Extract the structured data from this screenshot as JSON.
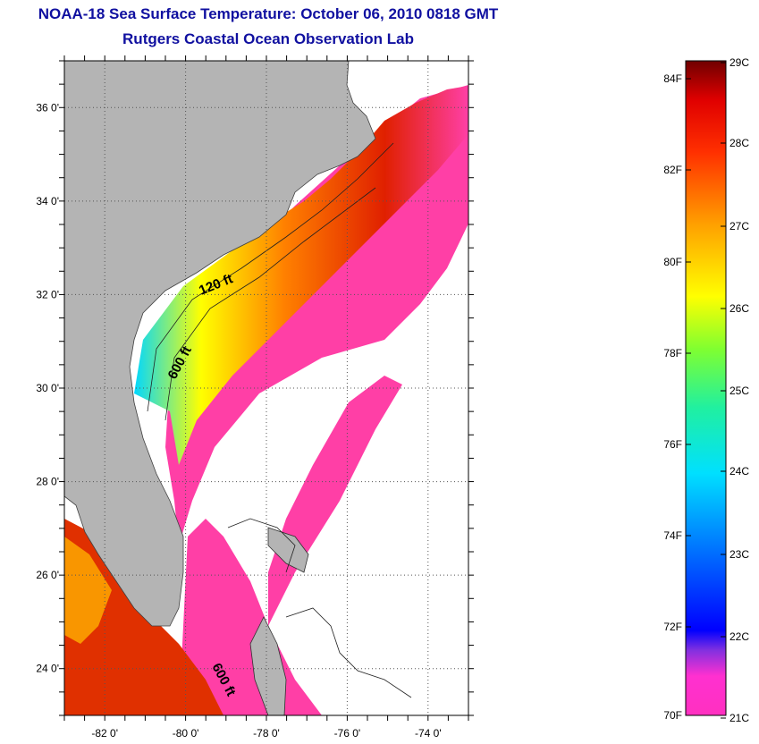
{
  "title": "NOAA-18 Sea Surface Temperature:  October 06, 2010 0818 GMT",
  "subtitle": "Rutgers Coastal Ocean Observation Lab",
  "map": {
    "lon_range": [
      -83,
      -73
    ],
    "lat_range": [
      23,
      37
    ],
    "lat_ticks": [
      {
        "value": 36,
        "label": "36 0'"
      },
      {
        "value": 34,
        "label": "34 0'"
      },
      {
        "value": 32,
        "label": "32 0'"
      },
      {
        "value": 30,
        "label": "30 0'"
      },
      {
        "value": 28,
        "label": "28 0'"
      },
      {
        "value": 26,
        "label": "26 0'"
      },
      {
        "value": 24,
        "label": "24 0'"
      }
    ],
    "lon_ticks": [
      {
        "value": -82,
        "label": "-82 0'"
      },
      {
        "value": -80,
        "label": "-80 0'"
      },
      {
        "value": -78,
        "label": "-78 0'"
      },
      {
        "value": -76,
        "label": "-76 0'"
      },
      {
        "value": -74,
        "label": "-74 0'"
      }
    ],
    "contour_labels": [
      "120 ft",
      "600 ft",
      "600 ft"
    ],
    "colors": {
      "land": "#b4b4b4",
      "no_data": "#ffffff",
      "cold": "#ff3fa6"
    }
  },
  "colorbar": {
    "fahrenheit": [
      "84F",
      "82F",
      "80F",
      "78F",
      "76F",
      "74F",
      "72F",
      "70F"
    ],
    "celsius": [
      "29C",
      "28C",
      "27C",
      "26C",
      "25C",
      "24C",
      "23C",
      "22C",
      "21C"
    ],
    "colors": [
      "#ff30c0",
      "#8030e0",
      "#0000ff",
      "#0070ff",
      "#00e0ff",
      "#20f0a0",
      "#80ff30",
      "#ffff00",
      "#ffa000",
      "#ff3000",
      "#e00000",
      "#700000"
    ]
  }
}
